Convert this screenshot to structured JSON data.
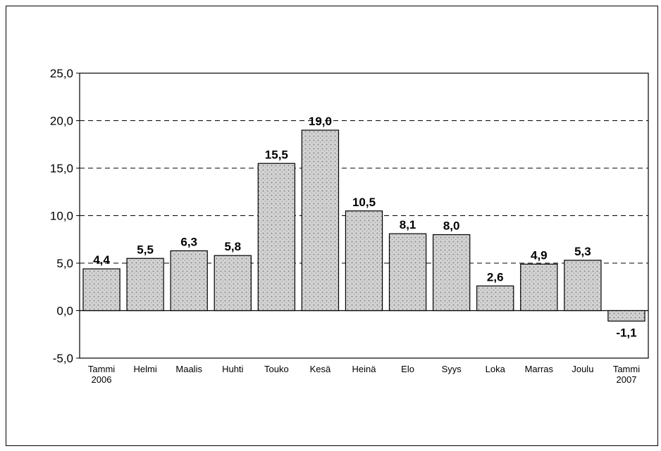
{
  "chart_data": {
    "type": "bar",
    "title": "",
    "xlabel": "",
    "ylabel": "",
    "categories": [
      [
        "Tammi",
        "2006"
      ],
      [
        "Helmi"
      ],
      [
        "Maalis"
      ],
      [
        "Huhti"
      ],
      [
        "Touko"
      ],
      [
        "Kesä"
      ],
      [
        "Heinä"
      ],
      [
        "Elo"
      ],
      [
        "Syys"
      ],
      [
        "Loka"
      ],
      [
        "Marras"
      ],
      [
        "Joulu"
      ],
      [
        "Tammi",
        "2007"
      ]
    ],
    "values": [
      4.4,
      5.5,
      6.3,
      5.8,
      15.5,
      19.0,
      10.5,
      8.1,
      8.0,
      2.6,
      4.9,
      5.3,
      -1.1
    ],
    "value_labels": [
      "4,4",
      "5,5",
      "6,3",
      "5,8",
      "15,5",
      "19,0",
      "10,5",
      "8,1",
      "8,0",
      "2,6",
      "4,9",
      "5,3",
      "-1,1"
    ],
    "ylim": [
      -5,
      25
    ],
    "yticks": [
      25,
      20,
      15,
      10,
      5,
      0,
      -5
    ],
    "ytick_labels": [
      "25,0",
      "20,0",
      "15,0",
      "10,0",
      "5,0",
      "0,0",
      "-5,0"
    ],
    "grid": "dashed horizontal",
    "legend": "none",
    "colors": {
      "bar_fill": "#c9c9c9",
      "bar_stroke": "#000000",
      "grid": "#000000"
    }
  }
}
